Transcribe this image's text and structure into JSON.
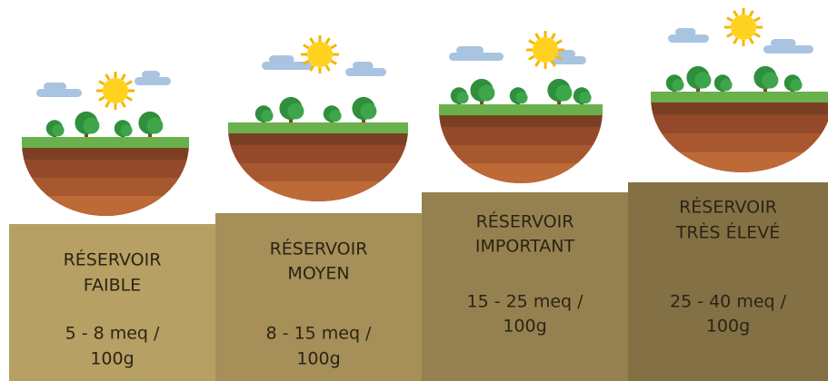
{
  "steps": [
    {
      "title_lines": [
        "RÉSERVOIR",
        "FAIBLE"
      ],
      "range_lines": [
        "5 - 8 meq /",
        "100g"
      ]
    },
    {
      "title_lines": [
        "RÉSERVOIR",
        "MOYEN"
      ],
      "range_lines": [
        "8 - 15 meq /",
        "100g"
      ]
    },
    {
      "title_lines": [
        "RÉSERVOIR",
        "IMPORTANT"
      ],
      "range_lines": [
        "15 - 25 meq /",
        "100g"
      ]
    },
    {
      "title_lines": [
        "RÉSERVOIR",
        "TRÈS ÉLEVÉ"
      ],
      "range_lines": [
        "25 - 40 meq /",
        "100g"
      ]
    }
  ]
}
